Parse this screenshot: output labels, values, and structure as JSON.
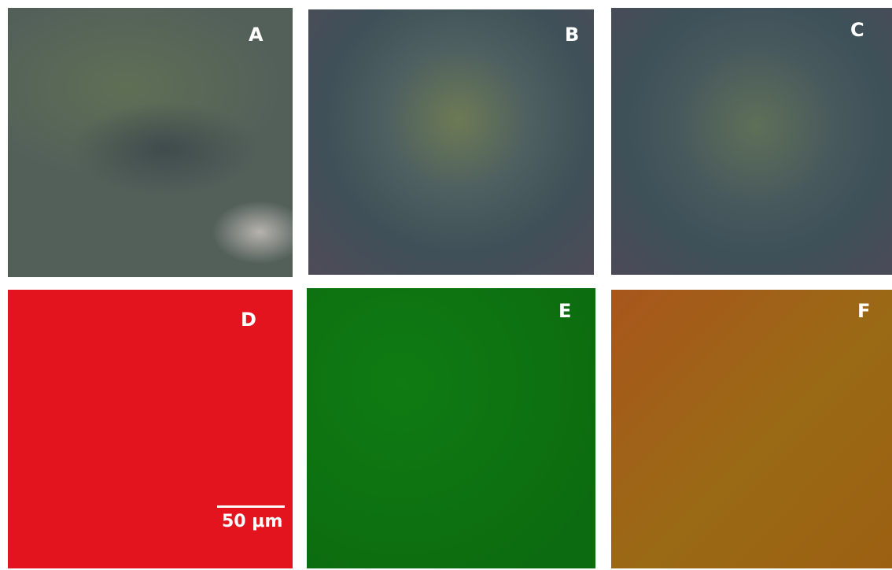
{
  "panels": [
    {
      "label": "A"
    },
    {
      "label": "B"
    },
    {
      "label": "C"
    },
    {
      "label": "D"
    },
    {
      "label": "E"
    },
    {
      "label": "F"
    }
  ],
  "scale_bar": {
    "label": "50 μm"
  }
}
